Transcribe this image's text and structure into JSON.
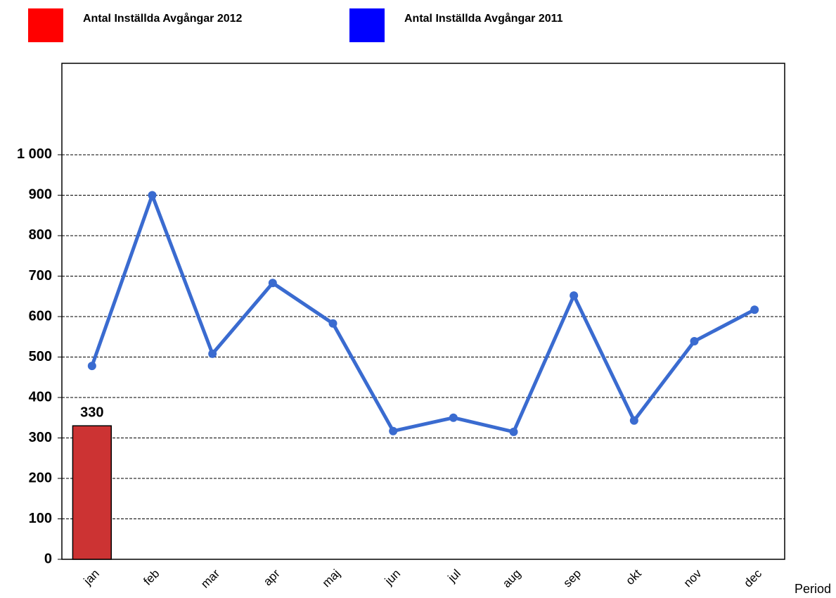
{
  "chart_data": {
    "type": "bar_line",
    "x_label": "Period",
    "categories": [
      "jan",
      "feb",
      "mar",
      "apr",
      "maj",
      "jun",
      "jul",
      "aug",
      "sep",
      "okt",
      "nov",
      "dec"
    ],
    "series": [
      {
        "name": "Antal Inställda Avgångar 2012",
        "type": "bar",
        "color": "#cc3333",
        "legend_color": "#ff0000",
        "values": [
          330,
          null,
          null,
          null,
          null,
          null,
          null,
          null,
          null,
          null,
          null,
          null
        ]
      },
      {
        "name": "Antal Inställda Avgångar 2011",
        "type": "line",
        "color": "#3a6bd0",
        "legend_color": "#0000ff",
        "values": [
          478,
          900,
          508,
          683,
          583,
          317,
          350,
          315,
          652,
          343,
          539,
          617
        ]
      }
    ],
    "ylim": [
      0,
      1226
    ],
    "yticks": [
      0,
      100,
      200,
      300,
      400,
      500,
      600,
      700,
      800,
      900,
      {
        "value": 1000,
        "label": "1 000"
      }
    ],
    "grid": true
  }
}
